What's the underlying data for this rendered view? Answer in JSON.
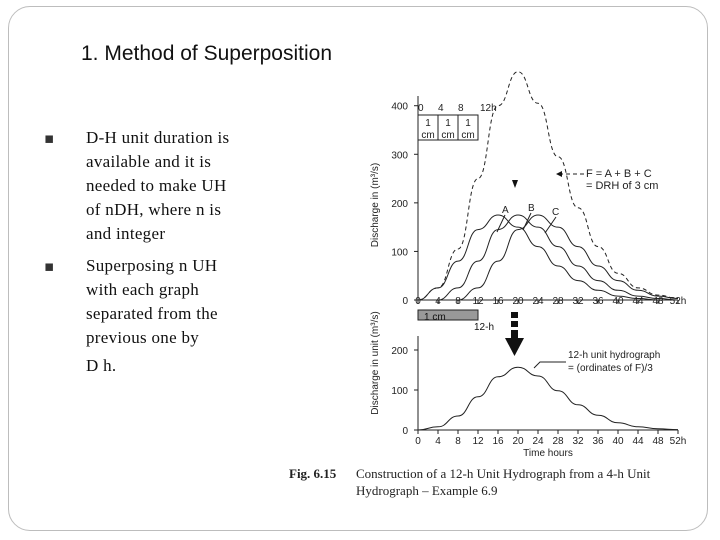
{
  "slide": {
    "title": "1. Method of Superposition",
    "bullets": [
      {
        "lines": [
          "D-H unit duration is",
          "available and it is",
          "needed to make UH",
          "of nDH, where n is",
          "and integer"
        ]
      },
      {
        "lines": [
          "Superposing n UH",
          "with each graph",
          "separated from the",
          "previous one by",
          "D h."
        ]
      }
    ]
  },
  "figure": {
    "caption_label": "Fig. 6.15",
    "caption_line1": "Construction of a 12-h Unit Hydrograph from a 4-h Unit",
    "caption_line2": "Hydrograph – Example 6.9",
    "top_chart": {
      "ylabel": "Discharge in (m³/s)",
      "yticks": [
        "400",
        "300",
        "200",
        "100",
        "0"
      ],
      "xticks": [
        "0",
        "4",
        "8",
        "12",
        "16",
        "20",
        "24",
        "28",
        "32",
        "36",
        "40",
        "44",
        "48",
        "52h"
      ],
      "rain_header": [
        "0",
        "4",
        "8",
        "12h"
      ],
      "rain_cells": [
        "1 cm",
        "1 cm",
        "1 cm"
      ],
      "labels": {
        "A": "A",
        "B": "B",
        "C": "C",
        "arrow_line1": "F = A + B + C",
        "arrow_line2": "= DRH of 3 cm"
      },
      "rain_box_label": "1 cm",
      "duration_label": "12-h"
    },
    "bottom_chart": {
      "ylabel": "Discharge in unit (m³/s)",
      "yticks": [
        "200",
        "100",
        "0"
      ],
      "xticks": [
        "0",
        "4",
        "8",
        "12",
        "16",
        "20",
        "24",
        "28",
        "32",
        "36",
        "40",
        "44",
        "48",
        "52h"
      ],
      "xlabel": "Time hours",
      "legend_line1": "12-h unit hydrograph",
      "legend_line2": "= (ordinates of F)/3"
    }
  },
  "chart_data": [
    {
      "type": "line",
      "title": "",
      "xlabel": "",
      "ylabel": "Discharge in (m³/s)",
      "xlim": [
        0,
        52
      ],
      "ylim": [
        0,
        420
      ],
      "series": [
        {
          "name": "A",
          "x": [
            0,
            4,
            8,
            12,
            16,
            20,
            24,
            28,
            32,
            36,
            40,
            44,
            48
          ],
          "values": [
            0,
            25,
            80,
            145,
            175,
            150,
            110,
            70,
            40,
            20,
            8,
            3,
            0
          ]
        },
        {
          "name": "B",
          "x": [
            4,
            8,
            12,
            16,
            20,
            24,
            28,
            32,
            36,
            40,
            44,
            48,
            52
          ],
          "values": [
            0,
            25,
            80,
            145,
            175,
            150,
            110,
            70,
            40,
            20,
            8,
            3,
            0
          ]
        },
        {
          "name": "C",
          "x": [
            8,
            12,
            16,
            20,
            24,
            28,
            32,
            36,
            40,
            44,
            48,
            52
          ],
          "values": [
            0,
            25,
            80,
            145,
            175,
            150,
            110,
            70,
            40,
            20,
            8,
            3
          ]
        },
        {
          "name": "F = A + B + C",
          "x": [
            0,
            4,
            8,
            12,
            16,
            20,
            24,
            28,
            32,
            36,
            40,
            44,
            48,
            52
          ],
          "values": [
            0,
            25,
            105,
            250,
            400,
            470,
            405,
            295,
            190,
            110,
            55,
            25,
            10,
            3
          ]
        }
      ]
    },
    {
      "type": "line",
      "title": "",
      "xlabel": "Time hours",
      "ylabel": "Discharge in unit (m³/s)",
      "xlim": [
        0,
        52
      ],
      "ylim": [
        0,
        200
      ],
      "series": [
        {
          "name": "12-h unit hydrograph",
          "x": [
            0,
            4,
            8,
            12,
            16,
            20,
            24,
            28,
            32,
            36,
            40,
            44,
            48,
            52
          ],
          "values": [
            0,
            8,
            35,
            83,
            133,
            157,
            135,
            98,
            63,
            37,
            18,
            8,
            3,
            1
          ]
        }
      ]
    }
  ]
}
